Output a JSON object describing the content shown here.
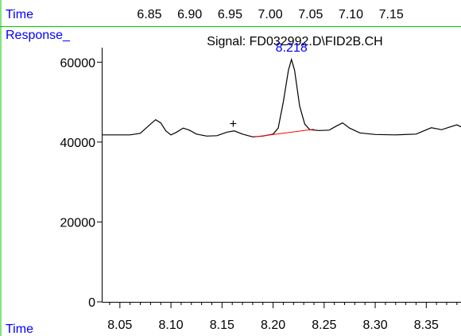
{
  "header": {
    "top_time_label": "Time",
    "top_ticks": [
      "6.85",
      "6.90",
      "6.95",
      "7.00",
      "7.05",
      "7.10",
      "7.15"
    ],
    "response_label": "Response_",
    "signal_title": "Signal: FD032992.D\\FID2B.CH",
    "bottom_time_label": "Time"
  },
  "colors": {
    "frame_green": "#00cc00",
    "label_blue": "#0000ff",
    "trace": "#000000",
    "baseline": "#ff0000"
  },
  "chart_data": {
    "type": "line",
    "title": "Signal: FD032992.D\\FID2B.CH",
    "xlabel": "Time",
    "ylabel": "Response_",
    "xlim": [
      8.033,
      8.384
    ],
    "ylim": [
      0,
      70000
    ],
    "x_ticks": [
      "8.05",
      "8.10",
      "8.15",
      "8.20",
      "8.25",
      "8.30",
      "8.35"
    ],
    "y_ticks": [
      "0",
      "20000",
      "40000",
      "60000"
    ],
    "grid": false,
    "series": [
      {
        "points": [
          [
            8.033,
            41800
          ],
          [
            8.05,
            41800
          ],
          [
            8.06,
            41800
          ],
          [
            8.07,
            42200
          ],
          [
            8.08,
            44500
          ],
          [
            8.085,
            45600
          ],
          [
            8.09,
            44800
          ],
          [
            8.095,
            42800
          ],
          [
            8.1,
            41800
          ],
          [
            8.105,
            42400
          ],
          [
            8.112,
            43500
          ],
          [
            8.118,
            43000
          ],
          [
            8.125,
            42000
          ],
          [
            8.135,
            41500
          ],
          [
            8.145,
            41600
          ],
          [
            8.155,
            42500
          ],
          [
            8.162,
            42800
          ],
          [
            8.17,
            42000
          ],
          [
            8.18,
            41300
          ],
          [
            8.19,
            41500
          ],
          [
            8.2,
            42000
          ],
          [
            8.205,
            43500
          ],
          [
            8.21,
            50000
          ],
          [
            8.215,
            58000
          ],
          [
            8.218,
            60700
          ],
          [
            8.221,
            58000
          ],
          [
            8.226,
            49000
          ],
          [
            8.231,
            44500
          ],
          [
            8.236,
            43100
          ],
          [
            8.245,
            42900
          ],
          [
            8.255,
            43000
          ],
          [
            8.262,
            44000
          ],
          [
            8.268,
            44800
          ],
          [
            8.275,
            43500
          ],
          [
            8.285,
            42300
          ],
          [
            8.3,
            41900
          ],
          [
            8.32,
            41800
          ],
          [
            8.34,
            42000
          ],
          [
            8.355,
            43600
          ],
          [
            8.365,
            43100
          ],
          [
            8.372,
            43700
          ],
          [
            8.38,
            44300
          ],
          [
            8.384,
            43800
          ]
        ]
      }
    ],
    "peak_label": {
      "text": "8.218",
      "x": 8.218,
      "y": 60700
    },
    "baseline_segment": [
      [
        8.182,
        41300
      ],
      [
        8.24,
        43200
      ]
    ],
    "marker": {
      "symbol": "+",
      "x": 8.161,
      "y": 44500
    }
  }
}
